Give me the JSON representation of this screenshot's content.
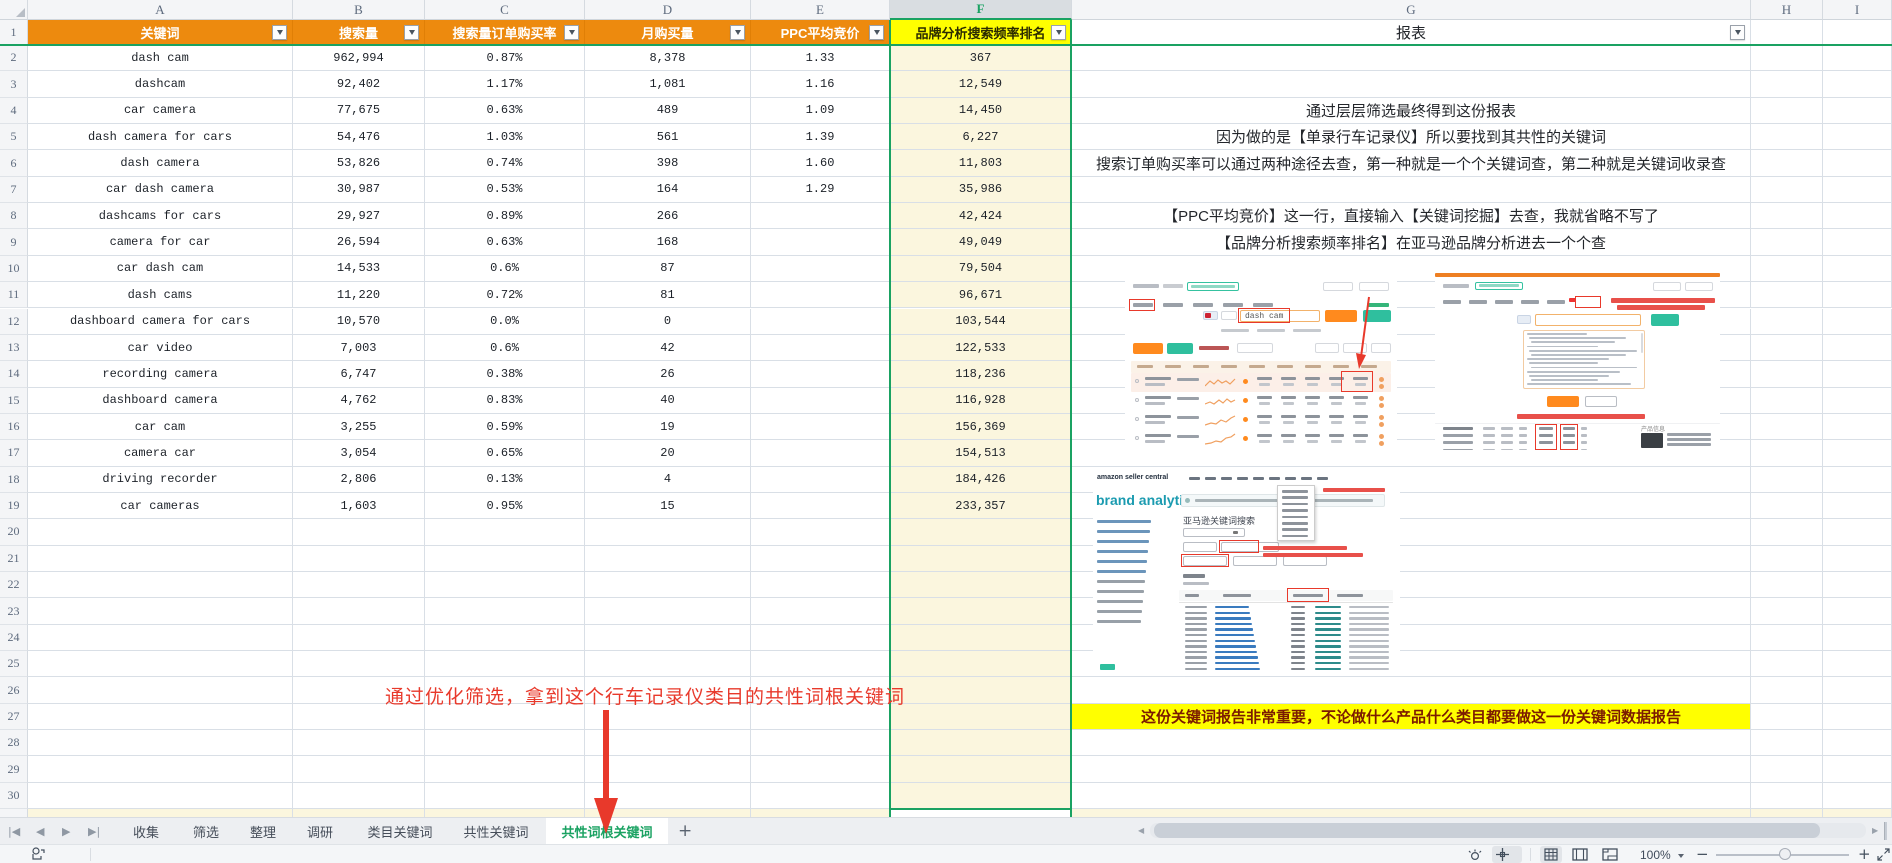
{
  "sheet": {
    "column_letters": [
      "A",
      "B",
      "C",
      "D",
      "E",
      "F",
      "G",
      "H",
      "I"
    ],
    "selected_column": "F",
    "visible_rows": 31
  },
  "table": {
    "headers": [
      "关键词",
      "搜索量",
      "搜索量订单购买率",
      "月购买量",
      "PPC平均竞价",
      "品牌分析搜索频率排名"
    ],
    "report_header": "报表",
    "rows": [
      {
        "row": 2,
        "keyword": "dash cam",
        "search_volume": "962,994",
        "purchase_rate": "0.87%",
        "monthly_purchase": "8,378",
        "ppc_avg_bid": "1.33",
        "brand_rank": "367"
      },
      {
        "row": 3,
        "keyword": "dashcam",
        "search_volume": "92,402",
        "purchase_rate": "1.17%",
        "monthly_purchase": "1,081",
        "ppc_avg_bid": "1.16",
        "brand_rank": "12,549"
      },
      {
        "row": 4,
        "keyword": "car camera",
        "search_volume": "77,675",
        "purchase_rate": "0.63%",
        "monthly_purchase": "489",
        "ppc_avg_bid": "1.09",
        "brand_rank": "14,450"
      },
      {
        "row": 5,
        "keyword": "dash camera for cars",
        "search_volume": "54,476",
        "purchase_rate": "1.03%",
        "monthly_purchase": "561",
        "ppc_avg_bid": "1.39",
        "brand_rank": "6,227"
      },
      {
        "row": 6,
        "keyword": "dash camera",
        "search_volume": "53,826",
        "purchase_rate": "0.74%",
        "monthly_purchase": "398",
        "ppc_avg_bid": "1.60",
        "brand_rank": "11,803"
      },
      {
        "row": 7,
        "keyword": "car dash camera",
        "search_volume": "30,987",
        "purchase_rate": "0.53%",
        "monthly_purchase": "164",
        "ppc_avg_bid": "1.29",
        "brand_rank": "35,986"
      },
      {
        "row": 8,
        "keyword": "dashcams for cars",
        "search_volume": "29,927",
        "purchase_rate": "0.89%",
        "monthly_purchase": "266",
        "ppc_avg_bid": "",
        "brand_rank": "42,424"
      },
      {
        "row": 9,
        "keyword": "camera for car",
        "search_volume": "26,594",
        "purchase_rate": "0.63%",
        "monthly_purchase": "168",
        "ppc_avg_bid": "",
        "brand_rank": "49,049"
      },
      {
        "row": 10,
        "keyword": "car dash cam",
        "search_volume": "14,533",
        "purchase_rate": "0.6%",
        "monthly_purchase": "87",
        "ppc_avg_bid": "",
        "brand_rank": "79,504"
      },
      {
        "row": 11,
        "keyword": "dash cams",
        "search_volume": "11,220",
        "purchase_rate": "0.72%",
        "monthly_purchase": "81",
        "ppc_avg_bid": "",
        "brand_rank": "96,671"
      },
      {
        "row": 12,
        "keyword": "dashboard camera for cars",
        "search_volume": "10,570",
        "purchase_rate": "0.0%",
        "monthly_purchase": "0",
        "ppc_avg_bid": "",
        "brand_rank": "103,544"
      },
      {
        "row": 13,
        "keyword": "car video",
        "search_volume": "7,003",
        "purchase_rate": "0.6%",
        "monthly_purchase": "42",
        "ppc_avg_bid": "",
        "brand_rank": "122,533"
      },
      {
        "row": 14,
        "keyword": "recording camera",
        "search_volume": "6,747",
        "purchase_rate": "0.38%",
        "monthly_purchase": "26",
        "ppc_avg_bid": "",
        "brand_rank": "118,236"
      },
      {
        "row": 15,
        "keyword": "dashboard camera",
        "search_volume": "4,762",
        "purchase_rate": "0.83%",
        "monthly_purchase": "40",
        "ppc_avg_bid": "",
        "brand_rank": "116,928"
      },
      {
        "row": 16,
        "keyword": "car cam",
        "search_volume": "3,255",
        "purchase_rate": "0.59%",
        "monthly_purchase": "19",
        "ppc_avg_bid": "",
        "brand_rank": "156,369"
      },
      {
        "row": 17,
        "keyword": "camera car",
        "search_volume": "3,054",
        "purchase_rate": "0.65%",
        "monthly_purchase": "20",
        "ppc_avg_bid": "",
        "brand_rank": "154,513"
      },
      {
        "row": 18,
        "keyword": "driving recorder",
        "search_volume": "2,806",
        "purchase_rate": "0.13%",
        "monthly_purchase": "4",
        "ppc_avg_bid": "",
        "brand_rank": "184,426"
      },
      {
        "row": 19,
        "keyword": "car cameras",
        "search_volume": "1,603",
        "purchase_rate": "0.95%",
        "monthly_purchase": "15",
        "ppc_avg_bid": "",
        "brand_rank": "233,357"
      }
    ]
  },
  "report_notes": [
    {
      "row": 4,
      "text": "通过层层筛选最终得到这份报表"
    },
    {
      "row": 5,
      "text": "因为做的是【单录行车记录仪】所以要找到其共性的关键词"
    },
    {
      "row": 6,
      "text": "搜索订单购买率可以通过两种途径去查，第一种就是一个个关键词查，第二种就是关键词收录查"
    },
    {
      "row": 8,
      "text": "【PPC平均竞价】这一行，直接输入【关键词挖掘】去查，我就省略不写了"
    },
    {
      "row": 9,
      "text": "【品牌分析搜索频率排名】在亚马逊品牌分析进去一个个查"
    }
  ],
  "highlight_banner": {
    "row": 27,
    "text": "这份关键词报告非常重要，不论做什么产品什么类目都要做这一份关键词数据报告"
  },
  "annotation": {
    "text": "通过优化筛选，拿到这个行车记录仪类目的共性词根关键词"
  },
  "embedded_screenshots": {
    "keyword_tool": {
      "search_value": "dash cam"
    },
    "brand_analytics": {
      "nav_brand": "amazon seller central",
      "logo": "brand analytics",
      "page_title": "亚马逊关键词搜索"
    }
  },
  "tab_bar": {
    "tabs": [
      "收集",
      "筛选",
      "整理",
      "调研",
      "类目关键词",
      "共性关键词",
      "共性词根关键词"
    ],
    "active_tab": "共性词根关键词",
    "add_label": "+"
  },
  "status_bar": {
    "zoom_level": "100%"
  },
  "colors": {
    "accent_green": "#1aa262",
    "header_orange": "#ed8a0e",
    "highlight_yellow": "#ffff00",
    "column_tint": "#fbf6de",
    "annotation_red": "#e8392b",
    "banner_text": "#7b1a00"
  }
}
